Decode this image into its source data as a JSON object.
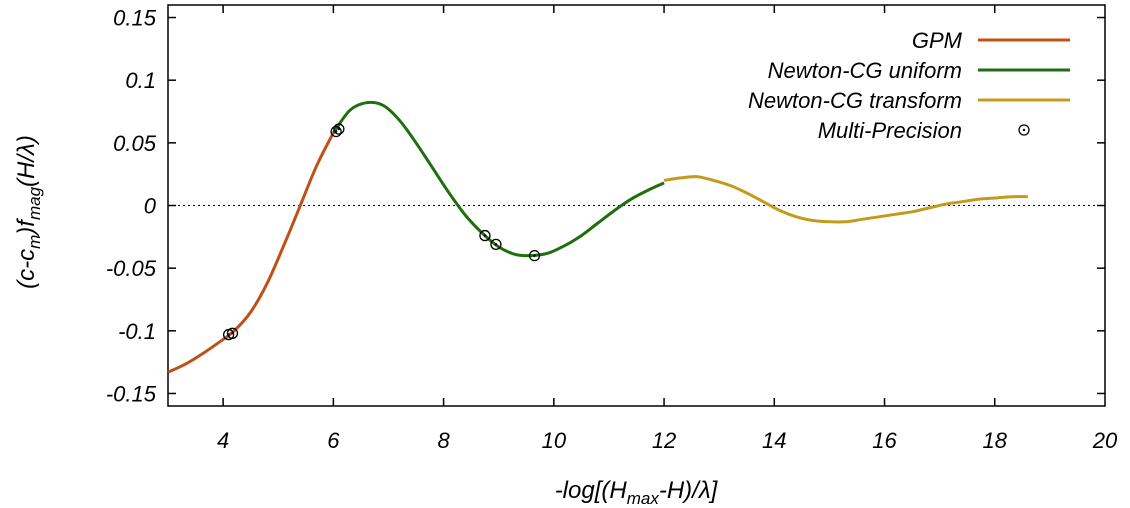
{
  "chart_data": {
    "type": "line",
    "xlabel": {
      "prefix": "-log[(H",
      "sub": "max",
      "suffix": "-H)/λ]"
    },
    "ylabel": {
      "p1": "(c-c",
      "s1": "m",
      "p2": ")f",
      "s2": "mag",
      "p3": "(H/λ)"
    },
    "xlim": [
      3,
      20
    ],
    "ylim": [
      -0.16,
      0.16
    ],
    "xticks": [
      "4",
      "6",
      "8",
      "10",
      "12",
      "14",
      "16",
      "18",
      "20"
    ],
    "yticks": [
      "0.15",
      "0.1",
      "0.05",
      "0",
      "-0.05",
      "-0.1",
      "-0.15"
    ],
    "zero_line": true,
    "legend_position": "top-right",
    "series": [
      {
        "name": "GPM",
        "color": "#c0501a",
        "style": "line",
        "x": [
          3.0,
          3.3,
          3.6,
          3.9,
          4.2,
          4.5,
          4.8,
          5.1,
          5.4,
          5.7,
          6.0
        ],
        "y": [
          -0.133,
          -0.127,
          -0.119,
          -0.11,
          -0.1,
          -0.085,
          -0.062,
          -0.032,
          0.0,
          0.032,
          0.058
        ]
      },
      {
        "name": "Newton-CG uniform",
        "color": "#1f6e10",
        "style": "line",
        "x": [
          6.0,
          6.3,
          6.6,
          6.9,
          7.2,
          7.5,
          7.8,
          8.1,
          8.4,
          8.7,
          9.0,
          9.3,
          9.6,
          9.9,
          10.2,
          10.5,
          10.8,
          11.1,
          11.4,
          11.7,
          12.0
        ],
        "y": [
          0.058,
          0.076,
          0.082,
          0.08,
          0.068,
          0.05,
          0.03,
          0.01,
          -0.008,
          -0.022,
          -0.033,
          -0.039,
          -0.04,
          -0.038,
          -0.032,
          -0.024,
          -0.014,
          -0.004,
          0.005,
          0.012,
          0.018
        ]
      },
      {
        "name": "Newton-CG transform",
        "color": "#c49a1c",
        "style": "line",
        "x": [
          12.0,
          12.3,
          12.6,
          12.9,
          13.2,
          13.5,
          13.8,
          14.1,
          14.4,
          14.7,
          15.0,
          15.3,
          15.6,
          15.9,
          16.2,
          16.5,
          16.8,
          17.1,
          17.4,
          17.7,
          18.0,
          18.3,
          18.6
        ],
        "y": [
          0.02,
          0.022,
          0.023,
          0.02,
          0.016,
          0.01,
          0.003,
          -0.004,
          -0.009,
          -0.012,
          -0.013,
          -0.013,
          -0.011,
          -0.009,
          -0.007,
          -0.005,
          -0.002,
          0.001,
          0.003,
          0.005,
          0.006,
          0.007,
          0.007
        ]
      },
      {
        "name": "Multi-Precision",
        "color": "#000000",
        "style": "marker",
        "x": [
          4.1,
          4.17,
          6.05,
          6.1,
          8.75,
          8.95,
          9.65
        ],
        "y": [
          -0.103,
          -0.102,
          0.059,
          0.061,
          -0.024,
          -0.031,
          -0.04
        ]
      }
    ]
  }
}
